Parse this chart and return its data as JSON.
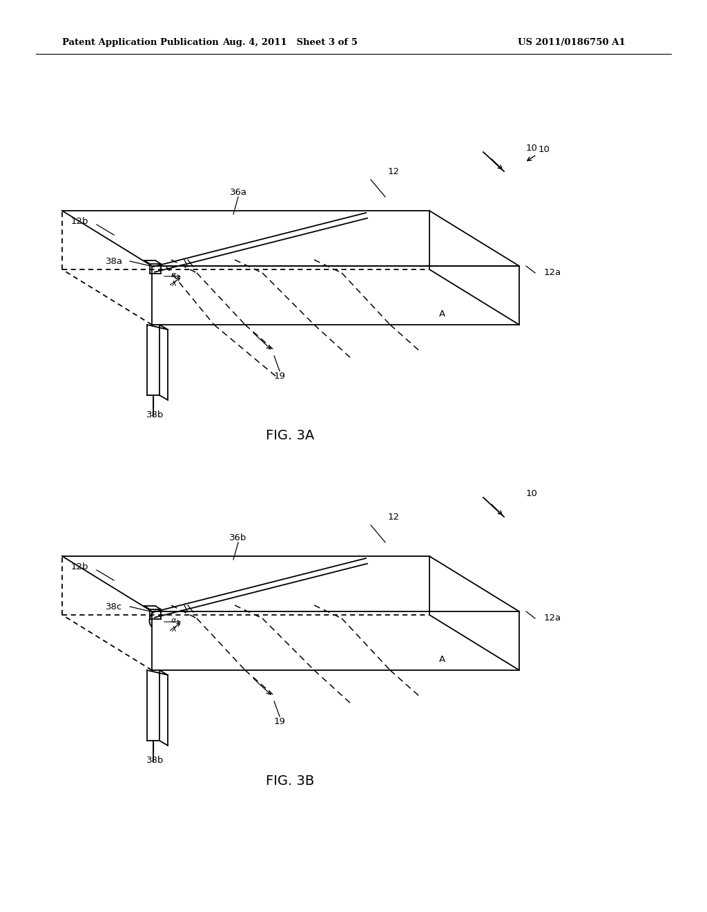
{
  "bg_color": "#ffffff",
  "line_color": "#000000",
  "header_left": "Patent Application Publication",
  "header_mid": "Aug. 4, 2011   Sheet 3 of 5",
  "header_right": "US 2011/0186750 A1",
  "fig3a_label": "FIG. 3A",
  "fig3b_label": "FIG. 3B",
  "lw": 1.3,
  "dash_lw": 1.1
}
